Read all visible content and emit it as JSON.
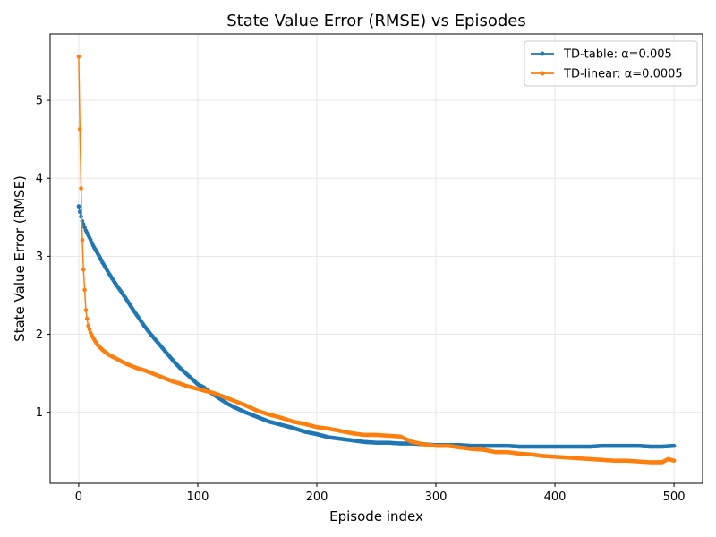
{
  "chart_data": {
    "type": "line",
    "title": "State Value Error (RMSE) vs Episodes",
    "xlabel": "Episode index",
    "ylabel": "State Value Error (RMSE)",
    "xlim": [
      -24,
      524
    ],
    "ylim": [
      0.09,
      5.85
    ],
    "xticks": [
      0,
      100,
      200,
      300,
      400,
      500
    ],
    "yticks": [
      1,
      2,
      3,
      4,
      5
    ],
    "grid": true,
    "legend_position": "top-right",
    "series": [
      {
        "name": "TD-table: α=0.005",
        "color": "#1f77b4",
        "x": [
          0,
          1,
          2,
          3,
          4,
          5,
          6,
          8,
          10,
          12,
          15,
          18,
          20,
          25,
          30,
          35,
          40,
          45,
          50,
          55,
          60,
          65,
          70,
          75,
          80,
          85,
          90,
          95,
          100,
          105,
          110,
          115,
          120,
          125,
          130,
          140,
          150,
          160,
          170,
          180,
          190,
          200,
          210,
          220,
          230,
          240,
          250,
          260,
          270,
          280,
          290,
          300,
          310,
          320,
          330,
          340,
          350,
          360,
          370,
          380,
          390,
          400,
          410,
          420,
          430,
          440,
          450,
          460,
          470,
          480,
          490,
          500
        ],
        "y": [
          3.64,
          3.57,
          3.51,
          3.45,
          3.41,
          3.37,
          3.33,
          3.27,
          3.21,
          3.14,
          3.06,
          2.98,
          2.92,
          2.79,
          2.67,
          2.56,
          2.45,
          2.33,
          2.22,
          2.11,
          2.01,
          1.92,
          1.83,
          1.74,
          1.65,
          1.57,
          1.5,
          1.43,
          1.36,
          1.32,
          1.26,
          1.21,
          1.16,
          1.11,
          1.07,
          1.0,
          0.94,
          0.88,
          0.84,
          0.8,
          0.75,
          0.72,
          0.68,
          0.66,
          0.64,
          0.62,
          0.61,
          0.61,
          0.6,
          0.6,
          0.59,
          0.58,
          0.58,
          0.58,
          0.57,
          0.57,
          0.57,
          0.57,
          0.56,
          0.56,
          0.56,
          0.56,
          0.56,
          0.56,
          0.56,
          0.57,
          0.57,
          0.57,
          0.57,
          0.56,
          0.56,
          0.57
        ]
      },
      {
        "name": "TD-linear: α=0.0005",
        "color": "#ff7f0e",
        "x": [
          0,
          1,
          2,
          3,
          4,
          5,
          6,
          7,
          8,
          10,
          12,
          15,
          18,
          20,
          25,
          30,
          35,
          40,
          45,
          50,
          55,
          60,
          65,
          70,
          75,
          80,
          85,
          90,
          95,
          100,
          105,
          110,
          115,
          120,
          125,
          130,
          140,
          150,
          160,
          170,
          180,
          190,
          200,
          210,
          220,
          230,
          240,
          250,
          260,
          270,
          280,
          290,
          300,
          310,
          320,
          330,
          340,
          350,
          360,
          370,
          380,
          390,
          400,
          410,
          420,
          430,
          440,
          450,
          460,
          470,
          480,
          490,
          495,
          500
        ],
        "y": [
          5.56,
          4.63,
          3.87,
          3.21,
          2.83,
          2.57,
          2.31,
          2.2,
          2.11,
          2.02,
          1.96,
          1.88,
          1.83,
          1.8,
          1.74,
          1.7,
          1.66,
          1.62,
          1.59,
          1.56,
          1.54,
          1.51,
          1.48,
          1.45,
          1.42,
          1.39,
          1.37,
          1.34,
          1.32,
          1.3,
          1.28,
          1.26,
          1.24,
          1.21,
          1.18,
          1.15,
          1.09,
          1.02,
          0.97,
          0.93,
          0.88,
          0.85,
          0.81,
          0.79,
          0.76,
          0.73,
          0.71,
          0.71,
          0.7,
          0.69,
          0.62,
          0.59,
          0.57,
          0.57,
          0.55,
          0.53,
          0.52,
          0.49,
          0.49,
          0.47,
          0.46,
          0.44,
          0.43,
          0.42,
          0.41,
          0.4,
          0.39,
          0.38,
          0.38,
          0.37,
          0.36,
          0.36,
          0.4,
          0.38
        ]
      }
    ]
  }
}
